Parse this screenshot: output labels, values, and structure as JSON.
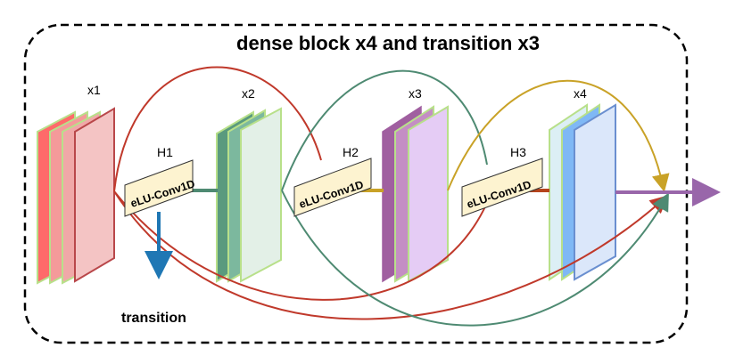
{
  "title": "dense block x4 and transition x3",
  "transition_label": "transition",
  "feature_maps": [
    {
      "label": "x1"
    },
    {
      "label": "x2"
    },
    {
      "label": "x3"
    },
    {
      "label": "x4"
    }
  ],
  "layers": [
    {
      "label": "H1",
      "op": "eLU-Conv1D"
    },
    {
      "label": "H2",
      "op": "eLU-Conv1D"
    },
    {
      "label": "H3",
      "op": "eLU-Conv1D"
    }
  ],
  "colors": {
    "x1": "#e05a5a",
    "x2": "#5a9a7e",
    "x3": "#a05fa0",
    "x4": "#6a8fd0",
    "h1_out": "#4e8a72",
    "h2_out": "#c9a227",
    "h3_out": "#b5441c",
    "transition_arrow": "#1f77b4",
    "output_arrow": "#9966aa"
  }
}
